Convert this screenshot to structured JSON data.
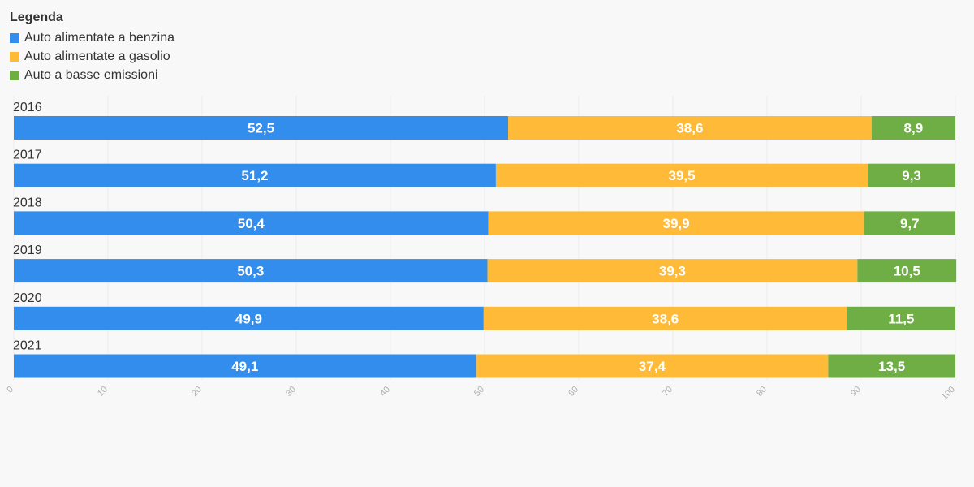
{
  "legend": {
    "title": "Legenda",
    "items": [
      {
        "label": "Auto alimentate a benzina",
        "color": "#338ded"
      },
      {
        "label": "Auto alimentate a gasolio",
        "color": "#ffbb37"
      },
      {
        "label": "Auto a basse emissioni",
        "color": "#6fae45"
      }
    ]
  },
  "chart_data": {
    "type": "bar",
    "orientation": "horizontal",
    "stacked": true,
    "categories": [
      "2016",
      "2017",
      "2018",
      "2019",
      "2020",
      "2021"
    ],
    "series": [
      {
        "name": "Auto alimentate a benzina",
        "color": "#338ded",
        "values": [
          52.5,
          51.2,
          50.4,
          50.3,
          49.9,
          49.1
        ],
        "labels": [
          "52,5",
          "51,2",
          "50,4",
          "50,3",
          "49,9",
          "49,1"
        ]
      },
      {
        "name": "Auto alimentate a gasolio",
        "color": "#ffbb37",
        "values": [
          38.6,
          39.5,
          39.9,
          39.3,
          38.6,
          37.4
        ],
        "labels": [
          "38,6",
          "39,5",
          "39,9",
          "39,3",
          "38,6",
          "37,4"
        ]
      },
      {
        "name": "Auto a basse emissioni",
        "color": "#6fae45",
        "values": [
          8.9,
          9.3,
          9.7,
          10.5,
          11.5,
          13.5
        ],
        "labels": [
          "8,9",
          "9,3",
          "9,7",
          "10,5",
          "11,5",
          "13,5"
        ]
      }
    ],
    "xlim": [
      0,
      100
    ],
    "xticks": [
      "0",
      "10",
      "20",
      "30",
      "40",
      "50",
      "60",
      "70",
      "80",
      "90",
      "100"
    ],
    "grid": true,
    "legend_position": "top-left"
  }
}
